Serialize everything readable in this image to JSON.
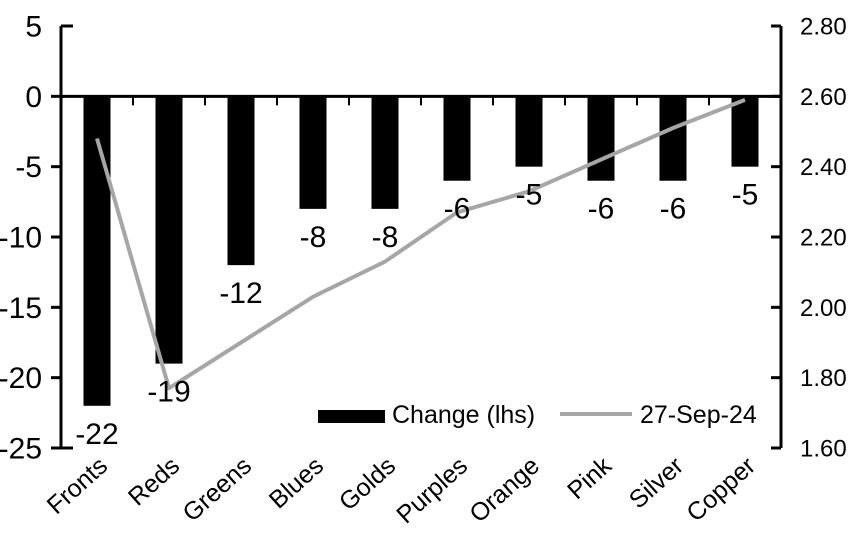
{
  "chart_data": {
    "type": "bar+line",
    "title": "",
    "categories": [
      "Fronts",
      "Reds",
      "Greens",
      "Blues",
      "Golds",
      "Purples",
      "Orange",
      "Pink",
      "Silver",
      "Copper"
    ],
    "series": [
      {
        "name": "Change (lhs)",
        "type": "bar",
        "axis": "left",
        "color": "#000000",
        "values": [
          -22,
          -19,
          -12,
          -8,
          -8,
          -6,
          -5,
          -6,
          -6,
          -5
        ],
        "data_labels": [
          "-22",
          "-19",
          "-12",
          "-8",
          "-8",
          "-6",
          "-5",
          "-6",
          "-6",
          "-5"
        ]
      },
      {
        "name": "27-Sep-24",
        "type": "line",
        "axis": "right",
        "color": "#a6a6a6",
        "values": [
          2.48,
          1.77,
          1.9,
          2.03,
          2.13,
          2.27,
          2.33,
          2.42,
          2.51,
          2.59
        ]
      }
    ],
    "left_axis": {
      "min": -25,
      "max": 5,
      "tick_labels": [
        "5",
        "0",
        "-5",
        "-10",
        "-15",
        "-20",
        "-25"
      ]
    },
    "right_axis": {
      "min": 1.6,
      "max": 2.8,
      "tick_labels": [
        "2.80",
        "2.60",
        "2.40",
        "2.20",
        "2.00",
        "1.80",
        "1.60"
      ]
    },
    "legend": {
      "position": "bottom-center-inside",
      "entries": [
        {
          "label": "Change (lhs)",
          "swatch": "bar",
          "color": "#000000"
        },
        {
          "label": "27-Sep-24",
          "swatch": "line",
          "color": "#a6a6a6"
        }
      ]
    },
    "grid": "off",
    "axis_color": "#000000",
    "background_color": "#ffffff"
  }
}
